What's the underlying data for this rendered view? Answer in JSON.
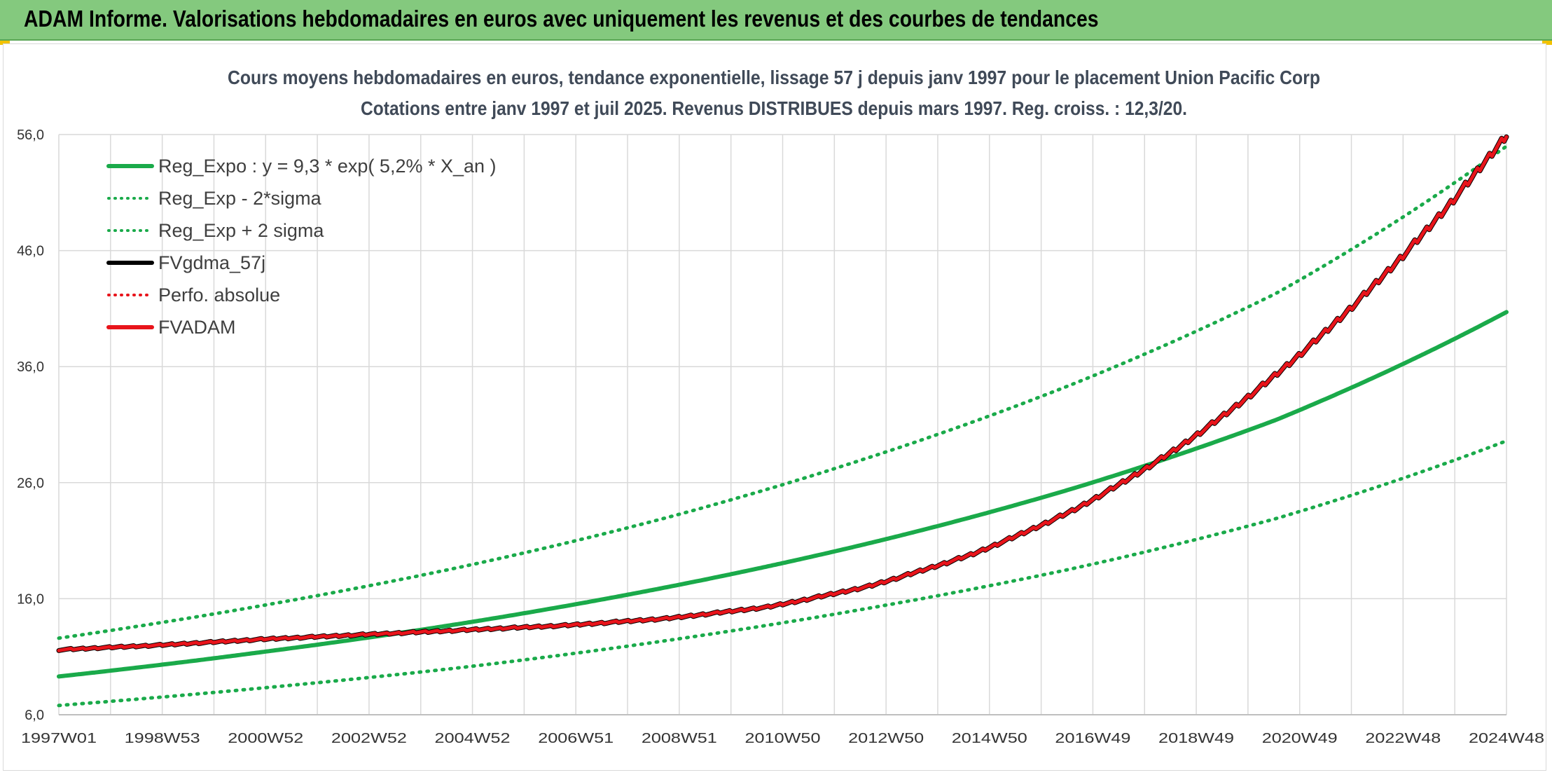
{
  "header": {
    "title": "ADAM Informe. Valorisations hebdomadaires en euros avec uniquement les revenus et des courbes de tendances"
  },
  "colors": {
    "header_bg": "#84c97e",
    "trend_green": "#1aaa4a",
    "adam_red": "#e8141b",
    "fv_black": "#000000",
    "grid": "#d9d9d9",
    "title_text": "#404a58"
  },
  "chart_data": {
    "type": "line",
    "title": "Cours moyens hebdomadaires en euros, tendance exponentielle, lissage 57 j depuis janv 1997 pour le placement Union Pacific Corp",
    "subtitle": "Cotations entre janv 1997 et juil 2025. Revenus DISTRIBUES depuis mars 1997. Reg. croiss. : 12,3/20.",
    "x_tick_labels": [
      "1997W01",
      "1998W53",
      "2000W52",
      "2002W52",
      "2004W52",
      "2006W51",
      "2008W51",
      "2010W50",
      "2012W50",
      "2014W50",
      "2016W49",
      "2018W49",
      "2020W49",
      "2022W48",
      "2024W48"
    ],
    "x_range_years": [
      1997.0,
      2025.55
    ],
    "y_tick_labels": [
      "6,0",
      "16,0",
      "26,0",
      "36,0",
      "46,0",
      "56,0"
    ],
    "ylim": [
      6,
      56
    ],
    "grid": true,
    "legend_position": "top-left",
    "legend": [
      {
        "label": "Reg_Expo : y = 9,3 * exp( 5,2% *  X_an )",
        "color": "#1aaa4a",
        "style": "solid"
      },
      {
        "label": "Reg_Exp - 2*sigma",
        "color": "#1aaa4a",
        "style": "dotted"
      },
      {
        "label": "Reg_Exp + 2 sigma",
        "color": "#1aaa4a",
        "style": "dotted"
      },
      {
        "label": "FVgdma_57j",
        "color": "#000000",
        "style": "solid"
      },
      {
        "label": "Perfo. absolue",
        "color": "#e8141b",
        "style": "dotted"
      },
      {
        "label": "FVADAM",
        "color": "#e8141b",
        "style": "solid"
      }
    ],
    "series": [
      {
        "name": "Reg_Expo : y = 9,3 * exp( 5,2% *  X_an )",
        "x": [
          1997,
          2001,
          2005,
          2009,
          2013,
          2017,
          2021,
          2025.55
        ],
        "y": [
          9.3,
          11.4,
          13.9,
          17.0,
          20.8,
          25.5,
          31.4,
          40.7
        ]
      },
      {
        "name": "Reg_Exp - 2*sigma",
        "x": [
          1997,
          2001,
          2005,
          2009,
          2013,
          2017,
          2021,
          2025.55
        ],
        "y": [
          6.8,
          8.3,
          10.1,
          12.4,
          15.2,
          18.6,
          22.9,
          29.6
        ]
      },
      {
        "name": "Reg_Exp + 2 sigma",
        "x": [
          1997,
          2001,
          2005,
          2009,
          2013,
          2017,
          2021,
          2025.55
        ],
        "y": [
          12.6,
          15.4,
          18.8,
          23.0,
          28.2,
          34.5,
          42.3,
          55.0
        ]
      },
      {
        "name": "FVgdma_57j",
        "x": [
          1997,
          1999,
          2001,
          2003,
          2005,
          2007,
          2009,
          2011,
          2013,
          2015,
          2017,
          2019,
          2021,
          2023,
          2025.55
        ],
        "y": [
          11.6,
          12.0,
          12.5,
          12.9,
          13.3,
          13.7,
          14.3,
          15.3,
          17.1,
          19.8,
          23.6,
          28.8,
          35.3,
          43.3,
          56.0
        ]
      },
      {
        "name": "FVADAM",
        "x": [
          1997,
          1999,
          2001,
          2003,
          2005,
          2007,
          2009,
          2011,
          2013,
          2015,
          2017,
          2019,
          2021,
          2023,
          2025.55
        ],
        "y": [
          11.6,
          12.0,
          12.5,
          12.9,
          13.3,
          13.7,
          14.3,
          15.3,
          17.1,
          19.8,
          23.6,
          28.8,
          35.3,
          43.3,
          56.0
        ]
      }
    ]
  }
}
